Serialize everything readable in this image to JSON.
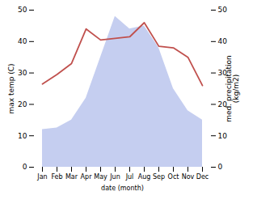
{
  "chart_data": {
    "type": "line",
    "xlabel": "date (month)",
    "ylabel": "max temp (C)",
    "y2label": "med. precipitation\n(kg/m2)",
    "categories": [
      "Jan",
      "Feb",
      "Mar",
      "Apr",
      "May",
      "Jun",
      "Jul",
      "Aug",
      "Sep",
      "Oct",
      "Nov",
      "Dec"
    ],
    "series": [
      {
        "type": "area",
        "axis": "y2",
        "color": "#c5cef0",
        "values": [
          12.0,
          12.5,
          15.0,
          22.0,
          35.0,
          48.0,
          44.0,
          45.0,
          38.0,
          25.0,
          18.0,
          15.0
        ]
      },
      {
        "type": "line",
        "color": "#c0504d",
        "values": [
          26.5,
          29.5,
          33.0,
          44.0,
          40.5,
          41.0,
          41.5,
          46.0,
          38.5,
          38.0,
          35.0,
          26.0
        ]
      }
    ],
    "ylim": [
      0,
      50
    ],
    "yticks": [
      0,
      10,
      20,
      30,
      40,
      50
    ],
    "y2lim": [
      0,
      50
    ],
    "y2ticks": [
      0,
      10,
      20,
      30,
      40,
      50
    ]
  }
}
